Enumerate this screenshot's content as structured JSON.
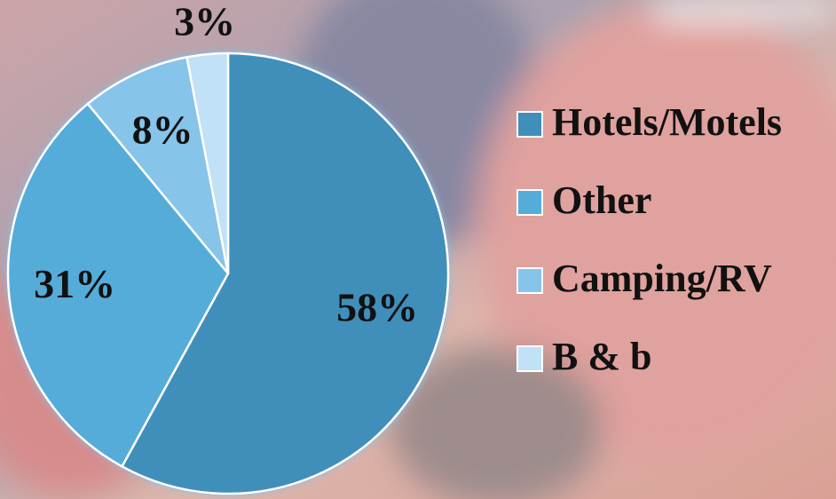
{
  "chart_data": {
    "type": "pie",
    "categories": [
      "Hotels/Motels",
      "Other",
      "Camping/RV",
      "B & b"
    ],
    "values": [
      58,
      31,
      8,
      3
    ],
    "value_labels": [
      "58%",
      "31%",
      "8%",
      "3%"
    ],
    "colors": [
      "#3f8fbb",
      "#55acd9",
      "#86c4ea",
      "#c0e1f6"
    ],
    "legend": "right"
  }
}
